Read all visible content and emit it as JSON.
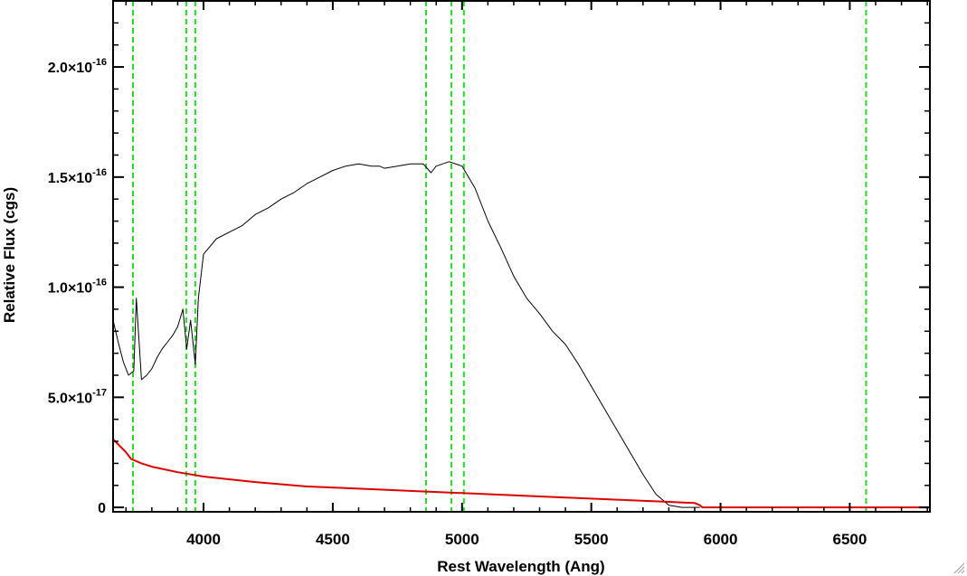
{
  "chart_data": {
    "type": "line",
    "xlabel": "Rest Wavelength (Ang)",
    "ylabel": "Relative Flux (cgs)",
    "xlim": [
      3650,
      6810
    ],
    "ylim": [
      -2e-18,
      2.3e-16
    ],
    "x_ticks": [
      4000,
      4500,
      5000,
      5500,
      6000,
      6500
    ],
    "x_tick_labels": [
      "4000",
      "4500",
      "5000",
      "5500",
      "6000",
      "6500"
    ],
    "y_ticks": [
      {
        "value": 0,
        "mantissa": "0",
        "exponent": ""
      },
      {
        "value": 5e-17,
        "mantissa": "5.0×10",
        "exponent": "-17"
      },
      {
        "value": 1e-16,
        "mantissa": "1.0×10",
        "exponent": "-16"
      },
      {
        "value": 1.5e-16,
        "mantissa": "1.5×10",
        "exponent": "-16"
      },
      {
        "value": 2e-16,
        "mantissa": "2.0×10",
        "exponent": "-16"
      }
    ],
    "vertical_markers": [
      3727,
      3933,
      3968,
      4861,
      4959,
      5007,
      6563
    ],
    "series": [
      {
        "color": "#000000",
        "x": [
          3650,
          3670,
          3690,
          3710,
          3730,
          3740,
          3760,
          3780,
          3800,
          3820,
          3840,
          3860,
          3880,
          3900,
          3920,
          3935,
          3950,
          3968,
          3980,
          4000,
          4050,
          4100,
          4150,
          4200,
          4250,
          4300,
          4350,
          4400,
          4450,
          4500,
          4550,
          4600,
          4650,
          4680,
          4700,
          4750,
          4800,
          4850,
          4880,
          4900,
          4950,
          5000,
          5050,
          5100,
          5150,
          5200,
          5250,
          5300,
          5350,
          5400,
          5450,
          5500,
          5550,
          5600,
          5650,
          5700,
          5750,
          5800,
          5850,
          5900,
          5920
        ],
        "y": [
          8.5e-17,
          7.5e-17,
          6.6e-17,
          6e-17,
          6.2e-17,
          9.5e-17,
          5.8e-17,
          6e-17,
          6.3e-17,
          6.8e-17,
          7.2e-17,
          7.5e-17,
          7.8e-17,
          8.2e-17,
          9e-17,
          7.2e-17,
          8.5e-17,
          6.5e-17,
          9.5e-17,
          1.15e-16,
          1.22e-16,
          1.25e-16,
          1.28e-16,
          1.33e-16,
          1.36e-16,
          1.4e-16,
          1.43e-16,
          1.47e-16,
          1.5e-16,
          1.53e-16,
          1.55e-16,
          1.56e-16,
          1.55e-16,
          1.55e-16,
          1.54e-16,
          1.55e-16,
          1.56e-16,
          1.56e-16,
          1.52e-16,
          1.55e-16,
          1.57e-16,
          1.55e-16,
          1.45e-16,
          1.3e-16,
          1.18e-16,
          1.05e-16,
          9.5e-17,
          8.8e-17,
          8e-17,
          7.4e-17,
          6.5e-17,
          5.5e-17,
          4.5e-17,
          3.5e-17,
          2.5e-17,
          1.5e-17,
          6e-18,
          1e-18,
          0,
          0,
          0
        ]
      },
      {
        "color": "#e00000",
        "x": [
          3650,
          3700,
          3720,
          3760,
          3800,
          3900,
          4000,
          4200,
          4400,
          4600,
          4800,
          5000,
          5200,
          5400,
          5600,
          5800,
          5900,
          5920,
          5930,
          6810
        ],
        "y": [
          3.1e-17,
          2.5e-17,
          2.2e-17,
          2e-17,
          1.85e-17,
          1.6e-17,
          1.4e-17,
          1.15e-17,
          9.5e-18,
          8.5e-18,
          7.5e-18,
          6.5e-18,
          5.5e-18,
          4.5e-18,
          3.5e-18,
          2.5e-18,
          2e-18,
          1e-18,
          0,
          0
        ]
      }
    ]
  }
}
